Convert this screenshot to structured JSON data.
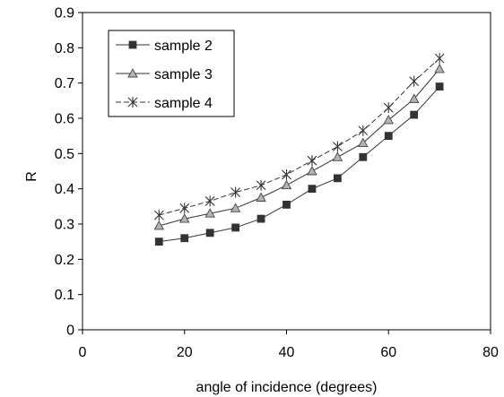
{
  "chart_data": {
    "type": "line",
    "title": "",
    "xlabel": "angle of incidence (degrees)",
    "ylabel": "R",
    "xlim": [
      0,
      80
    ],
    "ylim": [
      0,
      0.9
    ],
    "xticks": [
      "0",
      "20",
      "40",
      "60",
      "80"
    ],
    "yticks": [
      "0",
      "0.1",
      "0.2",
      "0.3",
      "0.4",
      "0.5",
      "0.6",
      "0.7",
      "0.8",
      "0.9"
    ],
    "grid": false,
    "legend_position": "top-left",
    "x": [
      15,
      20,
      25,
      30,
      35,
      40,
      45,
      50,
      55,
      60,
      65,
      70
    ],
    "series": [
      {
        "name": "sample 2",
        "marker": "square",
        "dash": "solid",
        "values": [
          0.25,
          0.26,
          0.275,
          0.29,
          0.315,
          0.355,
          0.4,
          0.43,
          0.49,
          0.55,
          0.61,
          0.69
        ]
      },
      {
        "name": "sample 3",
        "marker": "triangle",
        "dash": "solid",
        "values": [
          0.295,
          0.315,
          0.33,
          0.345,
          0.375,
          0.41,
          0.45,
          0.49,
          0.53,
          0.595,
          0.655,
          0.74
        ]
      },
      {
        "name": "sample 4",
        "marker": "star",
        "dash": "dashed",
        "values": [
          0.325,
          0.345,
          0.365,
          0.39,
          0.41,
          0.44,
          0.48,
          0.52,
          0.565,
          0.63,
          0.705,
          0.77
        ]
      }
    ]
  }
}
